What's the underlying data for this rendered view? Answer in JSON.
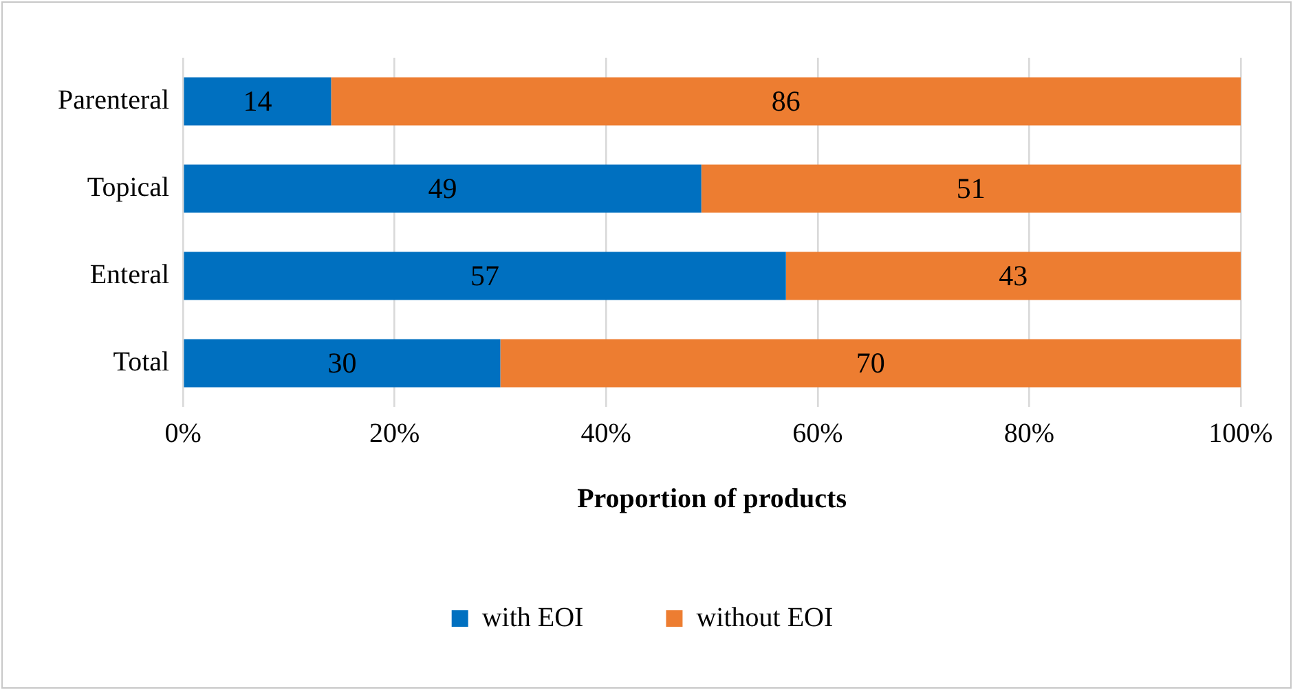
{
  "chart_data": {
    "type": "bar",
    "orientation": "horizontal",
    "stacked": true,
    "categories": [
      "Parenteral",
      "Topical",
      "Enteral",
      "Total"
    ],
    "series": [
      {
        "name": "with EOI",
        "color": "#0070c0",
        "values": [
          14,
          49,
          57,
          30
        ]
      },
      {
        "name": "without EOI",
        "color": "#ed7d31",
        "values": [
          86,
          51,
          43,
          70
        ]
      }
    ],
    "xlabel": "Proportion of products",
    "xlim": [
      0,
      100
    ],
    "xticks": [
      {
        "value": 0,
        "label": "0%"
      },
      {
        "value": 20,
        "label": "20%"
      },
      {
        "value": 40,
        "label": "40%"
      },
      {
        "value": 60,
        "label": "60%"
      },
      {
        "value": 80,
        "label": "80%"
      },
      {
        "value": 100,
        "label": "100%"
      }
    ],
    "grid": "x",
    "legend": "bottom",
    "data_labels": true
  }
}
